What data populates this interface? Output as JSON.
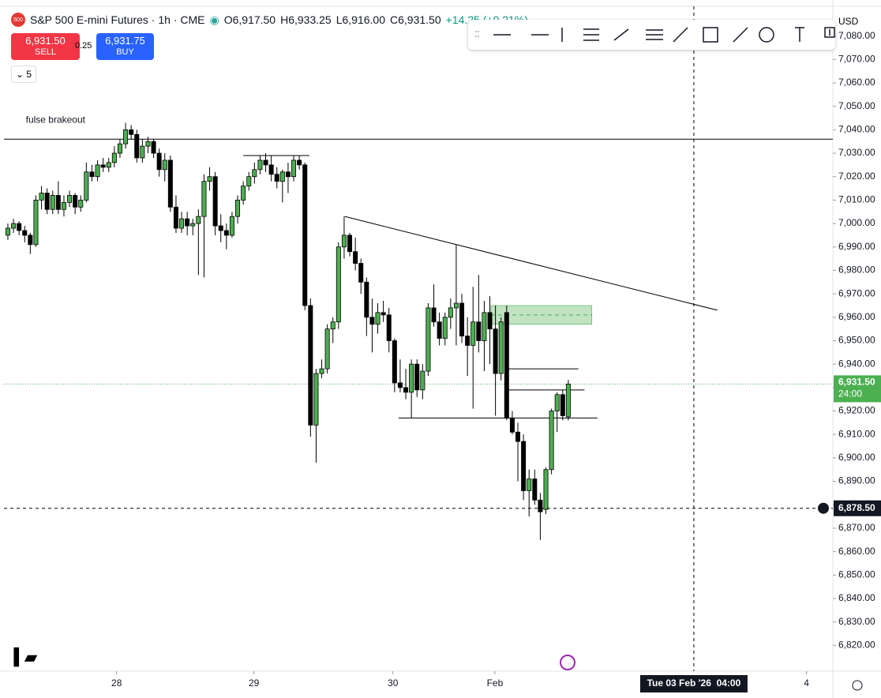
{
  "header": {
    "title": "S&P 500 E-mini Futures · 1h · CME",
    "open": "O6,917.50",
    "high": "H6,933.25",
    "low": "L6,916.00",
    "close": "C6,931.50",
    "change": "+14.25 (+0.21%)",
    "sell_price": "6,931.50",
    "sell": "SELL",
    "spread": "0.25",
    "buy_price": "6,931.75",
    "buy": "BUY",
    "lots": "5",
    "currency": "USD"
  },
  "chart_data": {
    "type": "candlestick",
    "up_color": "#4caf50",
    "down_color": "#000000",
    "xlim": [
      -0.7,
      147.2
    ],
    "ylim": [
      6809,
      7092
    ],
    "xticks": [
      {
        "value": 19.4,
        "label": "28"
      },
      {
        "value": 43.9,
        "label": "29"
      },
      {
        "value": 68.7,
        "label": "30"
      },
      {
        "value": 86.9,
        "label": "Feb"
      },
      {
        "value": 142.5,
        "label": "4"
      }
    ],
    "yticks": [
      {
        "value": 6820,
        "label": "6,820.00"
      },
      {
        "value": 6830,
        "label": "6,830.00"
      },
      {
        "value": 6840,
        "label": "6,840.00"
      },
      {
        "value": 6850,
        "label": "6,850.00"
      },
      {
        "value": 6860,
        "label": "6,860.00"
      },
      {
        "value": 6870,
        "label": "6,870.00"
      },
      {
        "value": 6880,
        "label": "6,880.00"
      },
      {
        "value": 6890,
        "label": "6,890.00"
      },
      {
        "value": 6900,
        "label": "6,900.00"
      },
      {
        "value": 6910,
        "label": "6,910.00"
      },
      {
        "value": 6920,
        "label": "6,920.00"
      },
      {
        "value": 6930,
        "label": "6,930.00"
      },
      {
        "value": 6940,
        "label": "6,940.00"
      },
      {
        "value": 6950,
        "label": "6,950.00"
      },
      {
        "value": 6960,
        "label": "6,960.00"
      },
      {
        "value": 6970,
        "label": "6,970.00"
      },
      {
        "value": 6980,
        "label": "6,980.00"
      },
      {
        "value": 6990,
        "label": "6,990.00"
      },
      {
        "value": 7000,
        "label": "7,000.00"
      },
      {
        "value": 7010,
        "label": "7,010.00"
      },
      {
        "value": 7020,
        "label": "7,020.00"
      },
      {
        "value": 7030,
        "label": "7,030.00"
      },
      {
        "value": 7040,
        "label": "7,040.00"
      },
      {
        "value": 7050,
        "label": "7,050.00"
      },
      {
        "value": 7060,
        "label": "7,060.00"
      },
      {
        "value": 7070,
        "label": "7,070.00"
      },
      {
        "value": 7080,
        "label": "7,080.00"
      }
    ],
    "ohlc": [
      [
        6995,
        7000,
        6993,
        6998
      ],
      [
        6998,
        7002,
        6996,
        7000
      ],
      [
        7000,
        7001,
        6995,
        6997
      ],
      [
        6997,
        6999,
        6992,
        6995
      ],
      [
        6995,
        6996,
        6987,
        6991
      ],
      [
        6991,
        7012,
        6990,
        7010
      ],
      [
        7010,
        7016,
        7006,
        7013
      ],
      [
        7013,
        7015,
        7004,
        7006
      ],
      [
        7006,
        7014,
        7004,
        7012
      ],
      [
        7012,
        7018,
        7004,
        7006
      ],
      [
        7006,
        7012,
        7003,
        7009
      ],
      [
        7009,
        7014,
        7007,
        7012
      ],
      [
        7012,
        7013,
        7004,
        7007
      ],
      [
        7007,
        7012,
        7005,
        7010
      ],
      [
        7010,
        7026,
        7009,
        7022
      ],
      [
        7022,
        7025,
        7018,
        7020
      ],
      [
        7020,
        7027,
        7018,
        7025
      ],
      [
        7025,
        7028,
        7022,
        7024
      ],
      [
        7024,
        7028,
        7022,
        7026
      ],
      [
        7026,
        7033,
        7024,
        7030
      ],
      [
        7030,
        7036,
        7028,
        7034
      ],
      [
        7034,
        7043,
        7032,
        7040
      ],
      [
        7040,
        7042,
        7036,
        7038
      ],
      [
        7038,
        7040,
        7026,
        7028
      ],
      [
        7028,
        7036,
        7026,
        7033
      ],
      [
        7033,
        7037,
        7030,
        7035
      ],
      [
        7035,
        7036,
        7028,
        7030
      ],
      [
        7030,
        7032,
        7020,
        7023
      ],
      [
        7023,
        7030,
        7018,
        7027
      ],
      [
        7027,
        7029,
        7005,
        7007
      ],
      [
        7007,
        7012,
        6996,
        6998
      ],
      [
        6998,
        7005,
        6996,
        7002
      ],
      [
        7002,
        7005,
        6995,
        6999
      ],
      [
        6999,
        7002,
        6995,
        7000
      ],
      [
        7000,
        7006,
        6978,
        7003
      ],
      [
        7003,
        7021,
        6977,
        7018
      ],
      [
        7018,
        7024,
        7014,
        7020
      ],
      [
        7020,
        7022,
        6995,
        6999
      ],
      [
        6999,
        7004,
        6992,
        6997
      ],
      [
        6997,
        7000,
        6989,
        6995
      ],
      [
        6995,
        7005,
        6994,
        7003
      ],
      [
        7003,
        7012,
        7000,
        7010
      ],
      [
        7010,
        7018,
        7008,
        7016
      ],
      [
        7016,
        7022,
        7014,
        7020
      ],
      [
        7020,
        7026,
        7017,
        7023
      ],
      [
        7023,
        7029,
        7021,
        7027
      ],
      [
        7027,
        7030,
        7022,
        7025
      ],
      [
        7025,
        7029,
        7018,
        7021
      ],
      [
        7021,
        7024,
        7015,
        7018
      ],
      [
        7018,
        7023,
        7009,
        7022
      ],
      [
        7022,
        7026,
        7013,
        7020
      ],
      [
        7020,
        7029,
        7018,
        7027
      ],
      [
        7027,
        7029,
        7023,
        7025
      ],
      [
        7025,
        7026,
        6963,
        6965
      ],
      [
        6965,
        6968,
        6909,
        6914
      ],
      [
        6914,
        6938,
        6898,
        6936
      ],
      [
        6936,
        6942,
        6934,
        6938
      ],
      [
        6938,
        6957,
        6936,
        6955
      ],
      [
        6955,
        6960,
        6949,
        6958
      ],
      [
        6958,
        6992,
        6955,
        6990
      ],
      [
        6990,
        7003,
        6985,
        6995
      ],
      [
        6995,
        6996,
        6986,
        6988
      ],
      [
        6988,
        6994,
        6980,
        6983
      ],
      [
        6983,
        6985,
        6970,
        6975
      ],
      [
        6975,
        6977,
        6952,
        6960
      ],
      [
        6960,
        6968,
        6945,
        6957
      ],
      [
        6957,
        6966,
        6953,
        6962
      ],
      [
        6962,
        6967,
        6958,
        6961
      ],
      [
        6961,
        6964,
        6945,
        6950
      ],
      [
        6950,
        6951,
        6928,
        6932
      ],
      [
        6932,
        6942,
        6928,
        6930
      ],
      [
        6930,
        6938,
        6925,
        6928
      ],
      [
        6928,
        6942,
        6917,
        6940
      ],
      [
        6940,
        6942,
        6926,
        6929
      ],
      [
        6929,
        6940,
        6925,
        6937
      ],
      [
        6937,
        6966,
        6935,
        6964
      ],
      [
        6964,
        6974,
        6956,
        6958
      ],
      [
        6958,
        6962,
        6948,
        6951
      ],
      [
        6951,
        6962,
        6948,
        6960
      ],
      [
        6960,
        6968,
        6955,
        6964
      ],
      [
        6964,
        6991,
        6948,
        6966
      ],
      [
        6966,
        6970,
        6949,
        6952
      ],
      [
        6952,
        6960,
        6935,
        6948
      ],
      [
        6948,
        6973,
        6921,
        6958
      ],
      [
        6958,
        6978,
        6945,
        6950
      ],
      [
        6950,
        6967,
        6937,
        6962
      ],
      [
        6962,
        6969,
        6940,
        6955
      ],
      [
        6955,
        6965,
        6918,
        6936
      ],
      [
        6936,
        6960,
        6933,
        6958
      ],
      [
        6962,
        6965,
        6916,
        6917
      ],
      [
        6917,
        6920,
        6910,
        6911
      ],
      [
        6911,
        6915,
        6890,
        6907
      ],
      [
        6907,
        6910,
        6882,
        6886
      ],
      [
        6886,
        6895,
        6875,
        6891
      ],
      [
        6891,
        6895,
        6880,
        6882
      ],
      [
        6882,
        6885,
        6865,
        6877
      ],
      [
        6878,
        6896,
        6876,
        6895
      ],
      [
        6895,
        6921,
        6893,
        6920
      ],
      [
        6920,
        6928,
        6911,
        6927
      ],
      [
        6927,
        6929,
        6916,
        6918
      ],
      [
        6917.5,
        6933.25,
        6916,
        6931.5
      ]
    ],
    "drawings": {
      "levels": [
        [
          7036,
          -0.7,
          147.2
        ],
        [
          7029,
          42,
          53.8
        ],
        [
          6917,
          69.7,
          105.2
        ],
        [
          6938,
          89.3,
          101.8
        ],
        [
          6929,
          89.3,
          102.9
        ]
      ],
      "trendline": [
        60.1,
        7003,
        126.6,
        6963
      ],
      "zone": [
        86.2,
        104.2,
        6957,
        6965
      ],
      "note": {
        "text": "fulse brakeout",
        "x": 8.5,
        "y": 7044
      }
    },
    "last_price": {
      "value": 6931.5,
      "label": "6,931.50",
      "countdown": "24:00"
    },
    "crosshair": {
      "x": 122.4,
      "y": 6878.5,
      "y_label": "6,878.50",
      "x_label": "Tue 03 Feb '26  04:00"
    }
  }
}
